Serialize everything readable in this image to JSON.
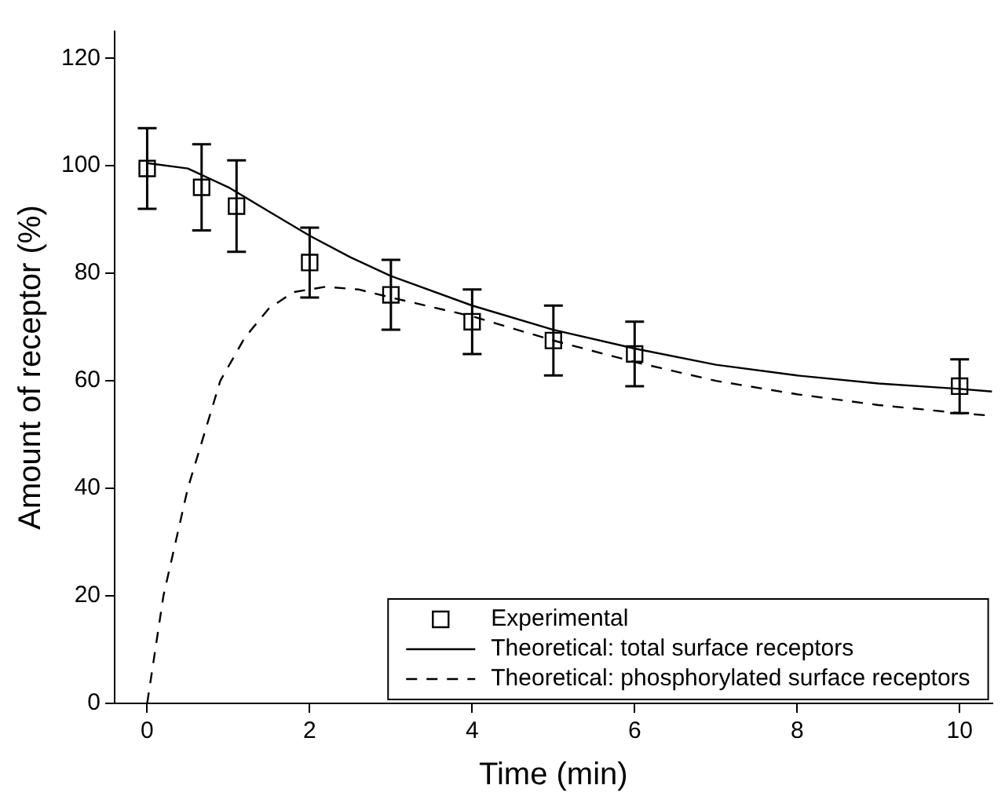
{
  "chart_data": {
    "type": "line",
    "xlabel": "Time (min)",
    "ylabel": "Amount of receptor (%)",
    "xlim": [
      -0.4,
      10.4
    ],
    "xticks": [
      0,
      2,
      4,
      6,
      8,
      10
    ],
    "ylim": [
      0,
      125
    ],
    "yticks": [
      0,
      20,
      40,
      60,
      80,
      100,
      120
    ],
    "grid": false,
    "legend": "bottom right",
    "series": [
      {
        "name": "Experimental",
        "type": "scatter",
        "marker": "square",
        "color": "#000000",
        "x": [
          0,
          0.67,
          1.1,
          2,
          3,
          4,
          5,
          6,
          10
        ],
        "values": [
          99.5,
          96,
          92.5,
          82,
          76,
          71,
          67.5,
          65,
          59
        ],
        "errors": [
          7.5,
          8,
          8.5,
          6.5,
          6.5,
          6,
          6.5,
          6,
          5
        ]
      },
      {
        "name": "Theoretical: total surface receptors",
        "line_style": "solid",
        "marker": "none",
        "color": "#000000",
        "x": [
          0,
          0.5,
          1,
          1.5,
          2,
          2.5,
          3,
          4,
          5,
          6,
          7,
          8,
          9,
          10,
          10.4
        ],
        "values": [
          100.5,
          99.5,
          96,
          91.5,
          87,
          83,
          79.5,
          74,
          69.5,
          66,
          63,
          61,
          59.5,
          58.5,
          58
        ]
      },
      {
        "name": "Theoretical: phosphorylated surface receptors",
        "line_style": "dashed",
        "marker": "none",
        "color": "#000000",
        "x": [
          0,
          0.1,
          0.2,
          0.35,
          0.5,
          0.7,
          0.9,
          1.2,
          1.5,
          1.8,
          2.2,
          2.6,
          3,
          4,
          5,
          6,
          7,
          8,
          9,
          10,
          10.4
        ],
        "values": [
          0,
          10,
          20,
          30,
          40,
          50,
          60,
          68,
          73.5,
          76.5,
          77.5,
          77,
          75.5,
          72,
          67.5,
          63.5,
          60,
          57.5,
          55.5,
          54,
          53.5
        ]
      }
    ]
  }
}
